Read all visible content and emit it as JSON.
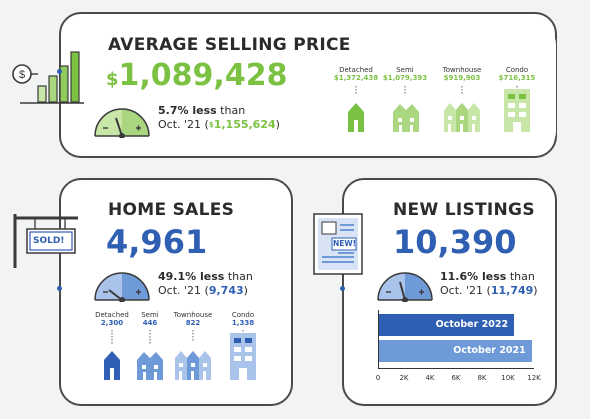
{
  "avg": {
    "title": "AVERAGE SELLING PRICE",
    "dollar": "$",
    "value": "1,089,428",
    "change_pct": "5.7% less",
    "than": "than",
    "prev_prefix": "Oct. '21 (",
    "prev_dollar": "$",
    "prev_value": "1,155,624",
    "prev_suffix": ")",
    "houses": [
      {
        "label": "Detached",
        "value": "$1,372,438"
      },
      {
        "label": "Semi",
        "value": "$1,079,393"
      },
      {
        "label": "Townhouse",
        "value": "$919,903"
      },
      {
        "label": "Condo",
        "value": "$716,315"
      }
    ]
  },
  "sales": {
    "title": "HOME SALES",
    "sign_text": "SOLD!",
    "value": "4,961",
    "change_pct": "49.1% less",
    "than": "than",
    "prev_prefix": "Oct. '21 (",
    "prev_value": "9,743",
    "prev_suffix": ")",
    "houses": [
      {
        "label": "Detached",
        "value": "2,300"
      },
      {
        "label": "Semi",
        "value": "446"
      },
      {
        "label": "Townhouse",
        "value": "822"
      },
      {
        "label": "Condo",
        "value": "1,338"
      }
    ]
  },
  "listings": {
    "title": "NEW LISTINGS",
    "icon_text": "NEW!",
    "value": "10,390",
    "change_pct": "11.6% less",
    "than": "than",
    "prev_prefix": "Oct. '21 (",
    "prev_value": "11,749",
    "prev_suffix": ")"
  },
  "gauge": {
    "minus": "-",
    "plus": "+"
  },
  "colors": {
    "green": "#7cc242",
    "green_light": "#a9d67e",
    "green_pale": "#c8e6a8",
    "blue": "#2f5fb3",
    "blue_light": "#6f9ad8",
    "blue_pale": "#a9c3ea"
  },
  "chart_data": {
    "type": "bar",
    "orientation": "horizontal",
    "categories": [
      "October 2022",
      "October 2021"
    ],
    "values": [
      10390,
      11749
    ],
    "xlim": [
      0,
      12000
    ],
    "xticks": [
      "0",
      "2K",
      "4K",
      "6K",
      "8K",
      "10K",
      "12K"
    ],
    "colors": [
      "#2f5fb3",
      "#6f9ad8"
    ]
  }
}
